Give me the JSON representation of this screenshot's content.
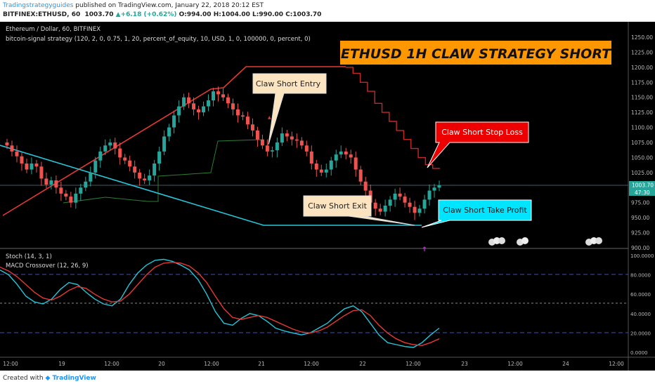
{
  "header": {
    "author": "Tradingstrategyguides",
    "published_text": "published on TradingView.com, January 22, 2018 20:12 EST",
    "symbol": "BITFINEX:ETHUSD, 60",
    "last": "1003.70",
    "change": "+6.18 (+0.62%)",
    "open": "O:994.00",
    "high": "H:1004.00",
    "low": "L:990.00",
    "close": "C:1003.70"
  },
  "legend": {
    "pair": "Ethereum / Dollar, 60, BITFINEX",
    "strategy": "bitcoin-signal strategy (120, 2, 0, 0.75, 1, 20, percent_of_equity, 10, USD, 1, 0, 100000, 0, percent, 0)",
    "stoch": "Stoch (14, 3, 1)",
    "macd": "MACD Crossover (12, 26, 9)"
  },
  "banner": "ETHUSD 1H CLAW STRATEGY SHORT",
  "callouts": {
    "entry": "Claw Short Entry",
    "stop": "Claw Short Stop Loss",
    "exit": "Claw Short Exit",
    "take_profit": "Claw Short Take Profit"
  },
  "price_axis": {
    "ticks": [
      "1250.00",
      "1225.00",
      "1200.00",
      "1175.00",
      "1150.00",
      "1125.00",
      "1100.00",
      "1075.00",
      "1050.00",
      "1025.00",
      "1000.00",
      "975.00",
      "950.00",
      "925.00",
      "900.00"
    ],
    "last_label": "1003.70",
    "countdown": "47:30"
  },
  "osc_axis": {
    "ticks": [
      "100.0000",
      "80.0000",
      "60.0000",
      "40.0000",
      "20.0000",
      "0.0000"
    ]
  },
  "time_axis": {
    "ticks": [
      "12:00",
      "19",
      "12:00",
      "20",
      "12:00",
      "21",
      "12:00",
      "22",
      "12:00",
      "23",
      "12:00",
      "24",
      "12:00"
    ]
  },
  "colors": {
    "background": "#000000",
    "up_candle": "#26a69a",
    "down_candle": "#ef5350",
    "trend_up": "#e53935",
    "trend_down": "#26c6da",
    "stop_line": "#c62828",
    "stoch_k": "#26c6da",
    "stoch_d": "#e53935",
    "banner_bg": "#ff9800"
  },
  "chart_data": {
    "type": "candlestick",
    "price_range": [
      900,
      1260
    ],
    "close_series": [
      1070,
      1060,
      1052,
      1040,
      1030,
      1040,
      1035,
      1015,
      1005,
      1012,
      1000,
      990,
      985,
      975,
      990,
      1000,
      1010,
      1025,
      1045,
      1060,
      1070,
      1075,
      1065,
      1050,
      1045,
      1035,
      1025,
      1015,
      1012,
      1020,
      1040,
      1060,
      1085,
      1100,
      1120,
      1135,
      1150,
      1140,
      1130,
      1125,
      1135,
      1145,
      1160,
      1155,
      1150,
      1140,
      1130,
      1120,
      1118,
      1105,
      1095,
      1080,
      1070,
      1060,
      1062,
      1075,
      1090,
      1085,
      1080,
      1078,
      1070,
      1060,
      1040,
      1030,
      1025,
      1030,
      1045,
      1055,
      1060,
      1055,
      1050,
      1030,
      1010,
      995,
      975,
      965,
      960,
      970,
      980,
      990,
      985,
      975,
      968,
      958,
      965,
      980,
      995,
      1000,
      1003.7
    ],
    "stop_loss_series": [
      1200,
      1190,
      1175,
      1160,
      1140,
      1125,
      1110,
      1095,
      1080,
      1065,
      1050,
      1038,
      1032,
      1032
    ],
    "stochastic": {
      "range": [
        0,
        100
      ],
      "levels": [
        80,
        50,
        20
      ],
      "k": [
        85,
        80,
        70,
        58,
        52,
        50,
        55,
        65,
        72,
        70,
        62,
        55,
        50,
        48,
        55,
        70,
        82,
        90,
        95,
        96,
        94,
        90,
        85,
        75,
        60,
        42,
        30,
        28,
        35,
        40,
        38,
        32,
        25,
        22,
        20,
        18,
        20,
        25,
        30,
        38,
        45,
        48,
        42,
        30,
        18,
        10,
        8,
        6,
        5,
        10,
        18,
        25
      ],
      "d": [
        88,
        84,
        78,
        70,
        62,
        56,
        54,
        58,
        64,
        68,
        66,
        60,
        55,
        52,
        53,
        60,
        70,
        80,
        88,
        92,
        93,
        92,
        89,
        82,
        72,
        58,
        45,
        36,
        34,
        36,
        38,
        36,
        32,
        28,
        24,
        21,
        20,
        22,
        26,
        32,
        38,
        43,
        44,
        38,
        28,
        20,
        14,
        10,
        8,
        7,
        10,
        14
      ]
    }
  }
}
